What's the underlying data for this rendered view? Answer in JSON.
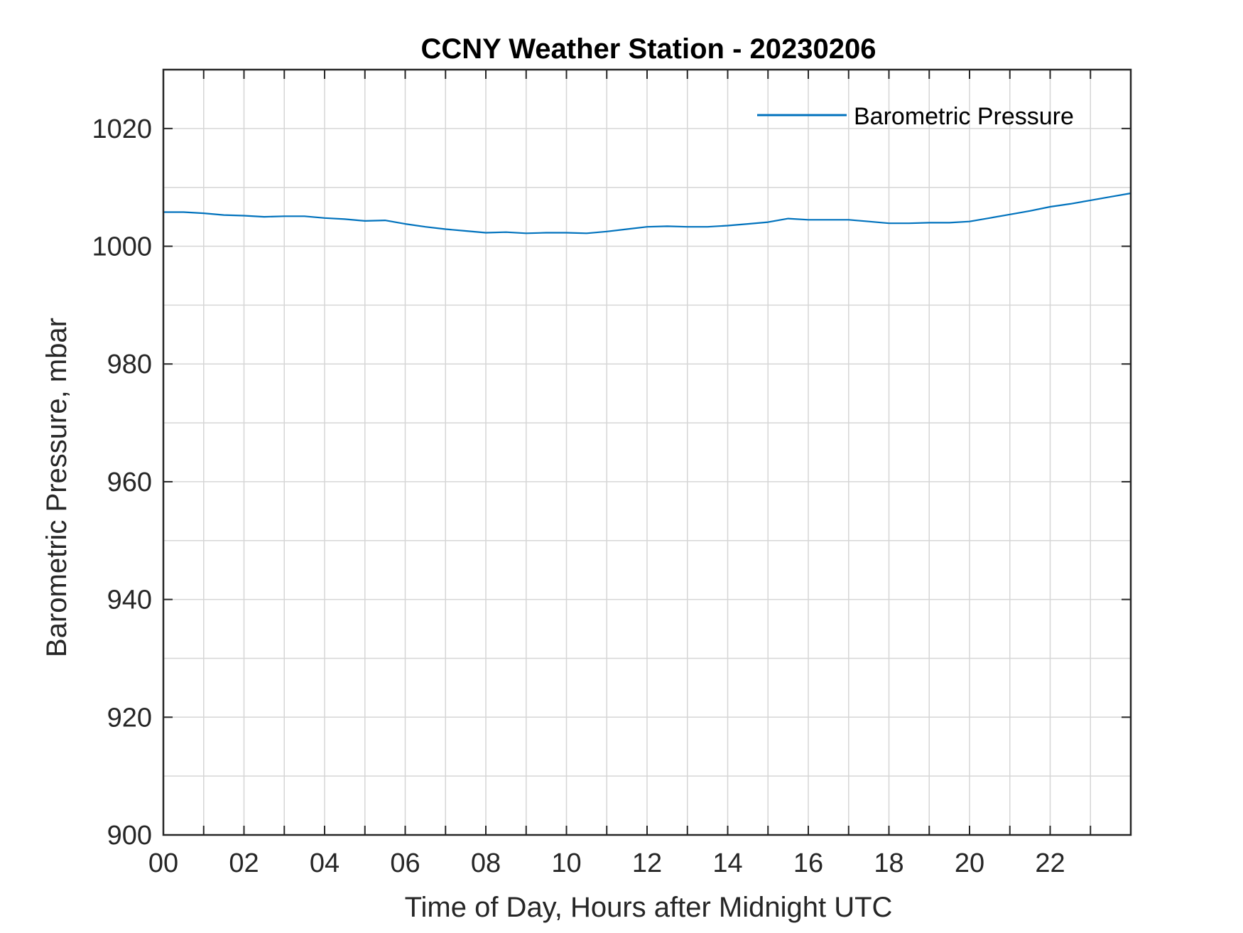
{
  "chart_data": {
    "type": "line",
    "title": "CCNY Weather Station - 20230206",
    "xlabel": "Time of Day, Hours after Midnight UTC",
    "ylabel": "Barometric Pressure, mbar",
    "xlim": [
      0,
      24
    ],
    "ylim": [
      900,
      1030
    ],
    "x_ticks": [
      0,
      2,
      4,
      6,
      8,
      10,
      12,
      14,
      16,
      18,
      20,
      22
    ],
    "x_tick_labels": [
      "00",
      "02",
      "04",
      "06",
      "08",
      "10",
      "12",
      "14",
      "16",
      "18",
      "20",
      "22"
    ],
    "x_minor_grid_step": 1,
    "y_ticks": [
      900,
      920,
      940,
      960,
      980,
      1000,
      1020
    ],
    "y_tick_labels": [
      "900",
      "920",
      "940",
      "960",
      "980",
      "1000",
      "1020"
    ],
    "y_minor_grid_step": 10,
    "grid": true,
    "legend_position": "top-right",
    "series": [
      {
        "name": "Barometric Pressure",
        "color": "#0072BD",
        "x": [
          0,
          0.5,
          1,
          1.5,
          2,
          2.5,
          3,
          3.5,
          4,
          4.5,
          5,
          5.5,
          6,
          6.5,
          7,
          7.5,
          8,
          8.5,
          9,
          9.5,
          10,
          10.5,
          11,
          11.5,
          12,
          12.5,
          13,
          13.5,
          14,
          14.5,
          15,
          15.5,
          16,
          16.5,
          17,
          17.5,
          18,
          18.5,
          19,
          19.5,
          20,
          20.5,
          21,
          21.5,
          22,
          22.5,
          23,
          23.5,
          24
        ],
        "y": [
          1005.8,
          1005.8,
          1005.6,
          1005.3,
          1005.2,
          1005.0,
          1005.1,
          1005.1,
          1004.8,
          1004.6,
          1004.3,
          1004.4,
          1003.8,
          1003.3,
          1002.9,
          1002.6,
          1002.3,
          1002.4,
          1002.2,
          1002.3,
          1002.3,
          1002.2,
          1002.5,
          1002.9,
          1003.3,
          1003.4,
          1003.3,
          1003.3,
          1003.5,
          1003.8,
          1004.1,
          1004.7,
          1004.5,
          1004.5,
          1004.5,
          1004.2,
          1003.9,
          1003.9,
          1004.0,
          1004.0,
          1004.2,
          1004.8,
          1005.4,
          1006.0,
          1006.7,
          1007.2,
          1007.8,
          1008.4,
          1009.0
        ]
      }
    ]
  }
}
